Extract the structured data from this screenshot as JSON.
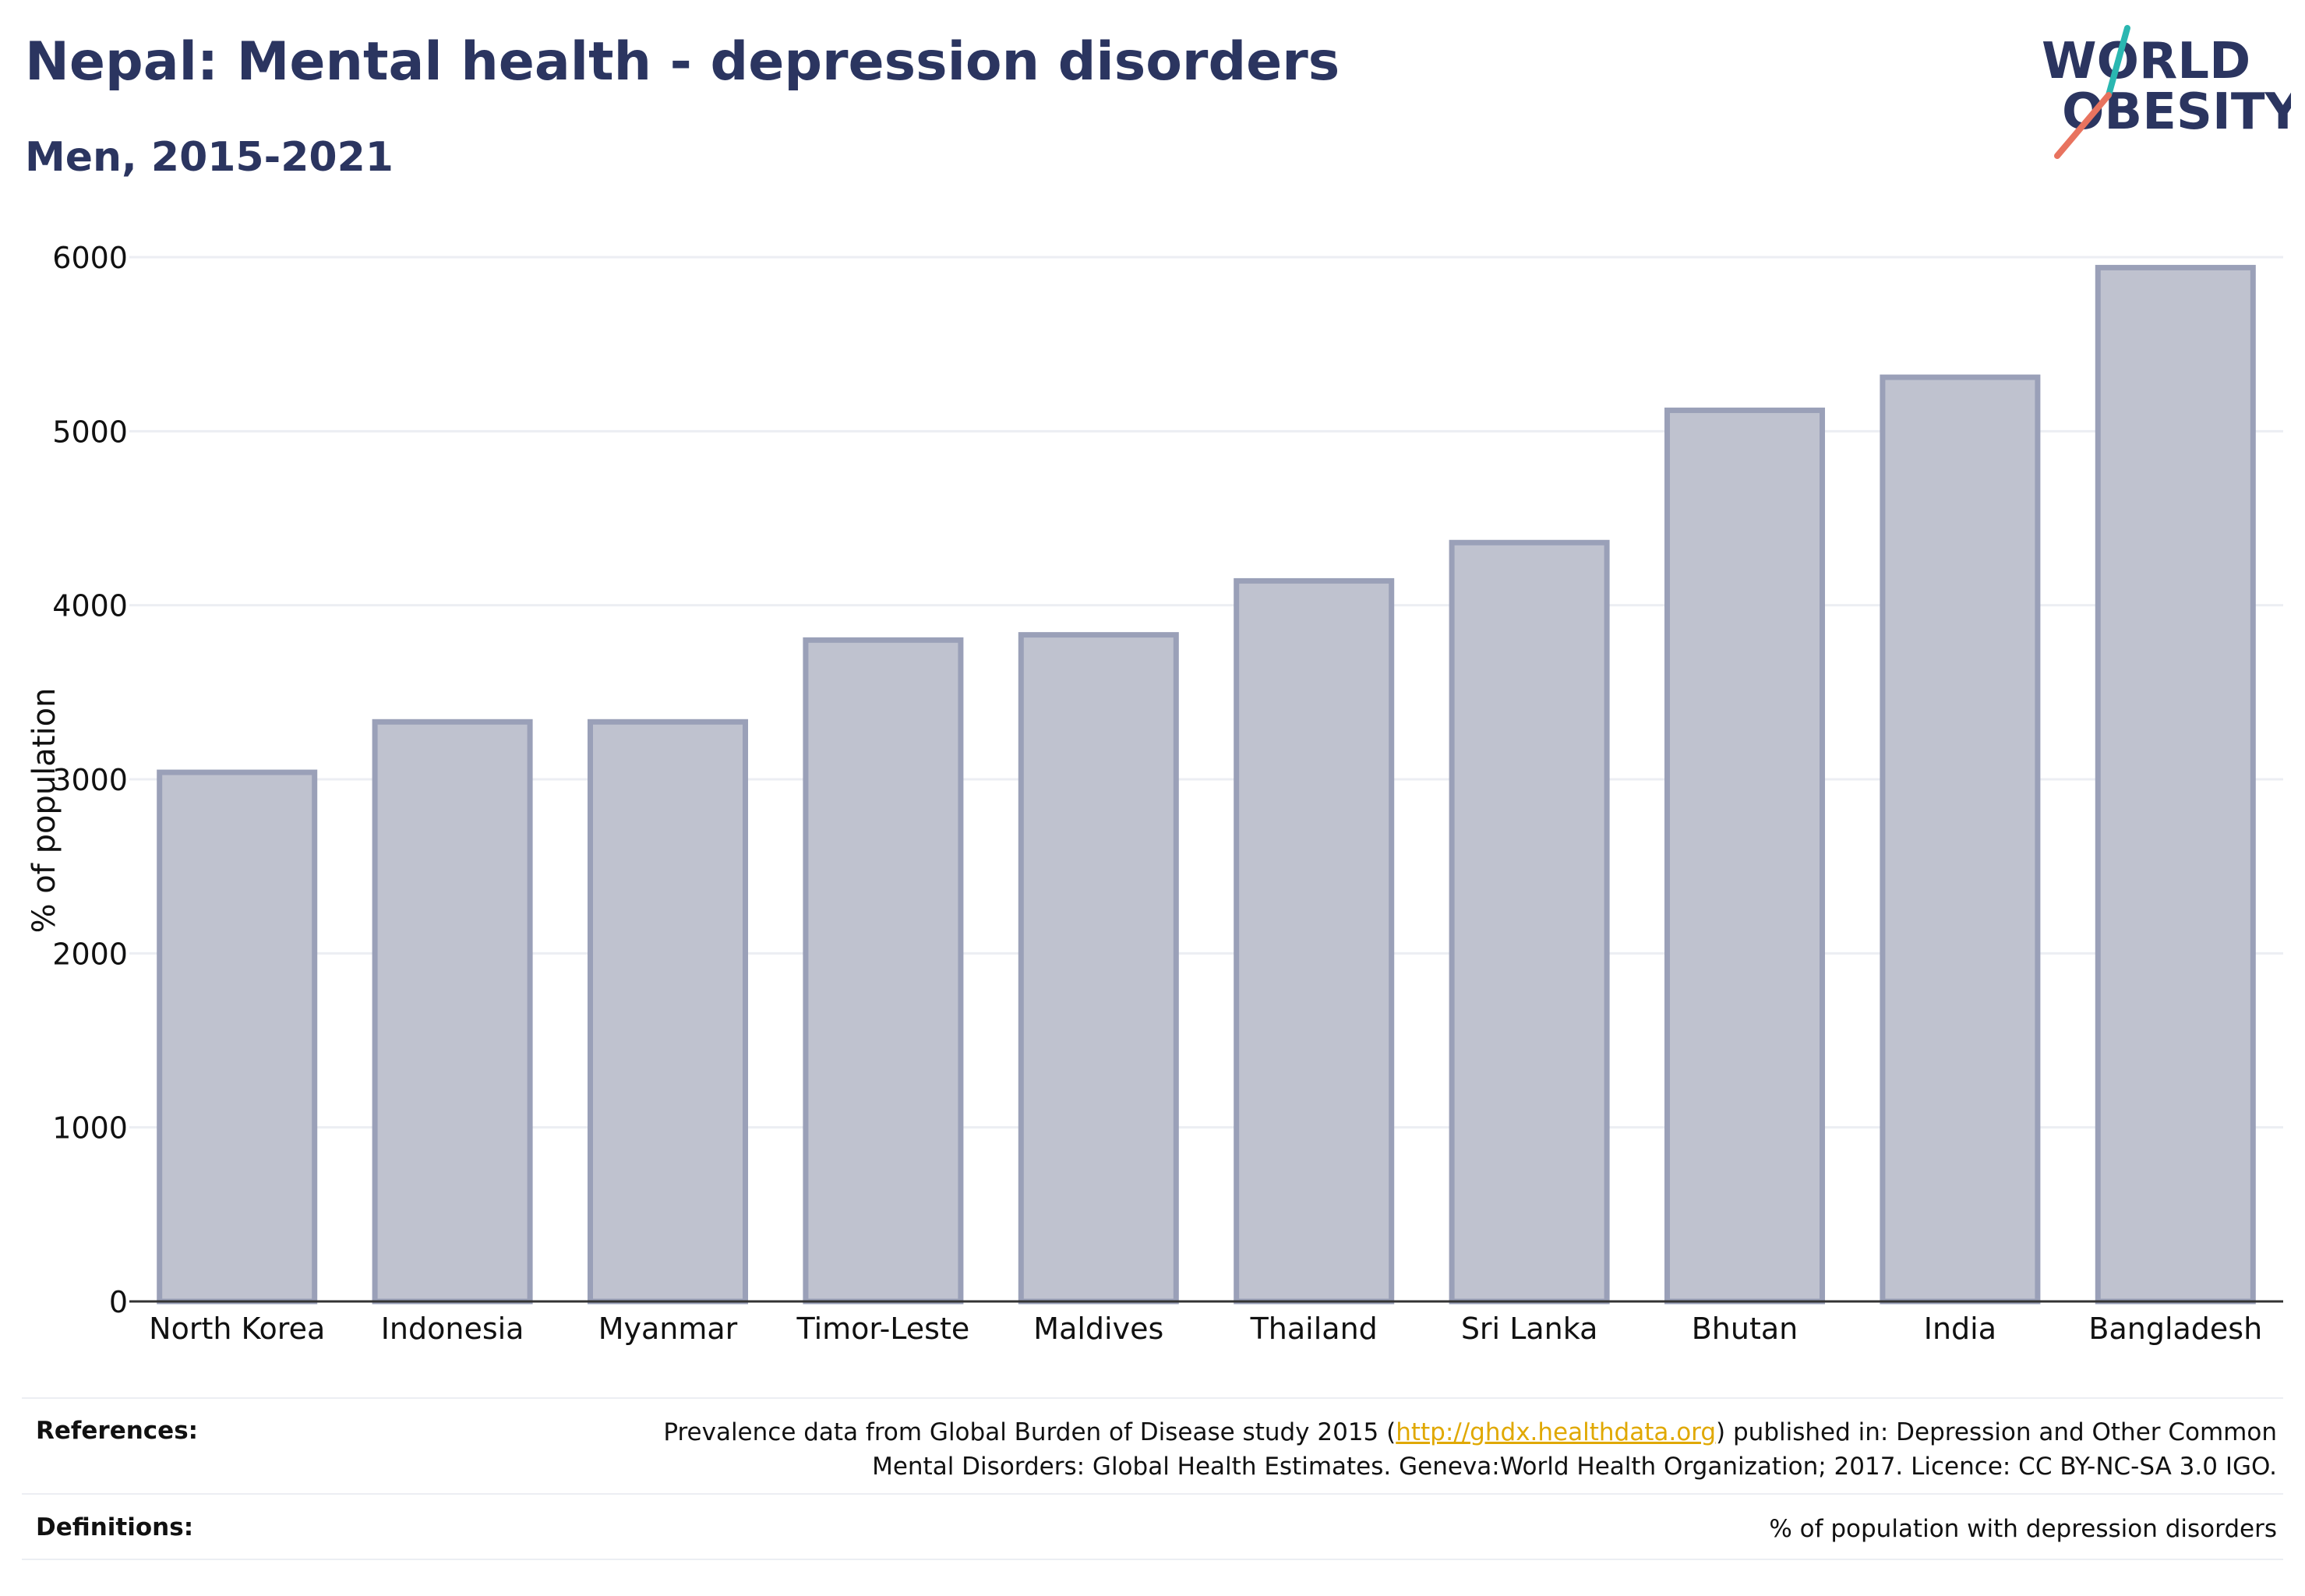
{
  "header": {
    "title": "Nepal: Mental health - depression disorders",
    "subtitle": "Men, 2015-2021"
  },
  "logo": {
    "line1": "WORLD",
    "line2": "OBESITY",
    "colors": {
      "text": "#2b3560",
      "slash_teal": "#2ab7b1",
      "slash_coral": "#e8735f"
    }
  },
  "chart_data": {
    "type": "bar",
    "categories": [
      "North Korea",
      "Indonesia",
      "Myanmar",
      "Timor-Leste",
      "Maldives",
      "Thailand",
      "Sri Lanka",
      "Bhutan",
      "India",
      "Bangladesh"
    ],
    "values": [
      3040,
      3330,
      3330,
      3800,
      3830,
      4140,
      4360,
      5120,
      5310,
      5940
    ],
    "ylabel": "% of population",
    "xlabel": "",
    "ylim": [
      0,
      6000
    ],
    "yticks": [
      0,
      1000,
      2000,
      3000,
      4000,
      5000,
      6000
    ],
    "grid": true,
    "colors": {
      "bar_fill": "#bfc2cf",
      "bar_stroke": "#9aa0b8",
      "grid": "#eceef3",
      "axis": "#333333"
    }
  },
  "footer": {
    "references_label": "References:",
    "references_pre": "Prevalence data from Global Burden of Disease study 2015 (",
    "references_link": "http://ghdx.healthdata.org",
    "references_post": ") published in: Depression and Other Common",
    "references_line2": "Mental Disorders: Global Health Estimates. Geneva:World Health Organization; 2017. Licence: CC BY-NC-SA 3.0 IGO.",
    "definitions_label": "Definitions:",
    "definitions_text": "% of population with depression disorders"
  }
}
